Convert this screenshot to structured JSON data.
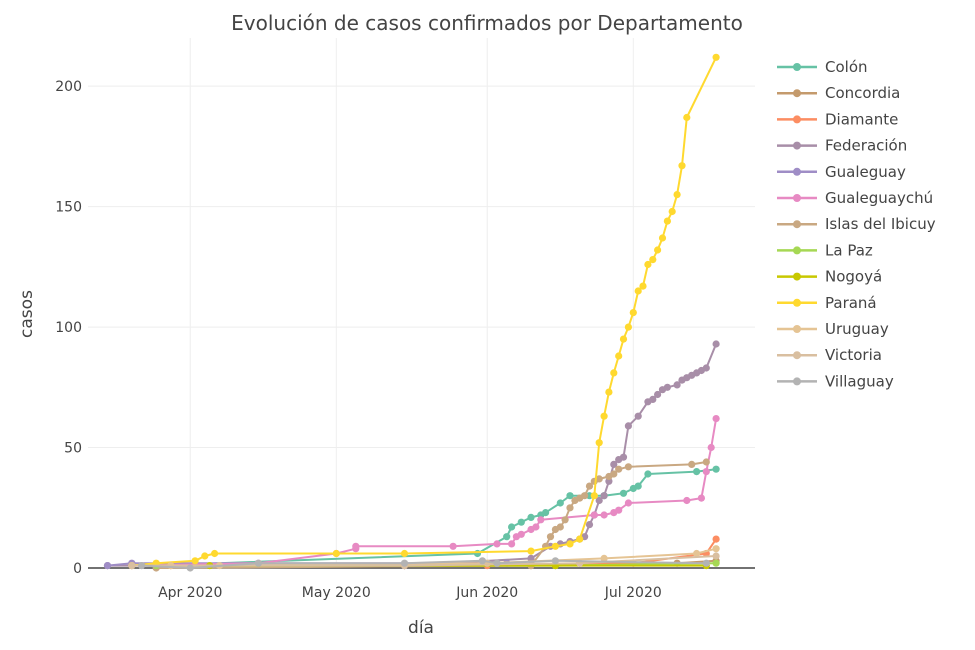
{
  "chart_data": {
    "type": "line",
    "title": "Evolución de casos confirmados por Departamento",
    "xlabel": "día",
    "ylabel": "casos",
    "xlim": [
      "2020-03-11",
      "2020-07-26"
    ],
    "ylim": [
      0,
      220
    ],
    "x_ticks": [
      {
        "date": "2020-04-01",
        "label": "Apr 2020"
      },
      {
        "date": "2020-05-01",
        "label": "May 2020"
      },
      {
        "date": "2020-06-01",
        "label": "Jun 2020"
      },
      {
        "date": "2020-07-01",
        "label": "Jul 2020"
      }
    ],
    "y_ticks": [
      0,
      50,
      100,
      150,
      200
    ],
    "grid": true,
    "legend_position": "right",
    "series": [
      {
        "name": "Colón",
        "color": "#66c2a5",
        "points": [
          [
            "2020-03-25",
            1
          ],
          [
            "2020-05-30",
            6
          ],
          [
            "2020-06-05",
            13
          ],
          [
            "2020-06-06",
            17
          ],
          [
            "2020-06-08",
            19
          ],
          [
            "2020-06-10",
            21
          ],
          [
            "2020-06-12",
            22
          ],
          [
            "2020-06-13",
            23
          ],
          [
            "2020-06-16",
            27
          ],
          [
            "2020-06-18",
            30
          ],
          [
            "2020-06-22",
            30
          ],
          [
            "2020-06-25",
            30
          ],
          [
            "2020-06-29",
            31
          ],
          [
            "2020-07-01",
            33
          ],
          [
            "2020-07-02",
            34
          ],
          [
            "2020-07-04",
            39
          ],
          [
            "2020-07-14",
            40
          ],
          [
            "2020-07-18",
            41
          ]
        ]
      },
      {
        "name": "Concordia",
        "color": "#c49a6c",
        "points": [
          [
            "2020-03-25",
            1
          ],
          [
            "2020-05-15",
            1
          ],
          [
            "2020-06-10",
            1
          ],
          [
            "2020-06-20",
            2
          ],
          [
            "2020-07-10",
            2
          ],
          [
            "2020-07-18",
            3
          ]
        ]
      },
      {
        "name": "Diamante",
        "color": "#fc8d62",
        "points": [
          [
            "2020-03-28",
            1
          ],
          [
            "2020-06-01",
            1
          ],
          [
            "2020-07-01",
            2
          ],
          [
            "2020-07-16",
            6
          ],
          [
            "2020-07-18",
            12
          ]
        ]
      },
      {
        "name": "Federación",
        "color": "#a88ea8",
        "points": [
          [
            "2020-03-15",
            1
          ],
          [
            "2020-05-15",
            1
          ],
          [
            "2020-06-10",
            4
          ],
          [
            "2020-06-14",
            9
          ],
          [
            "2020-06-16",
            10
          ],
          [
            "2020-06-18",
            11
          ],
          [
            "2020-06-20",
            12
          ],
          [
            "2020-06-21",
            13
          ],
          [
            "2020-06-22",
            18
          ],
          [
            "2020-06-23",
            22
          ],
          [
            "2020-06-24",
            28
          ],
          [
            "2020-06-25",
            30
          ],
          [
            "2020-06-26",
            36
          ],
          [
            "2020-06-27",
            43
          ],
          [
            "2020-06-28",
            45
          ],
          [
            "2020-06-29",
            46
          ],
          [
            "2020-06-30",
            59
          ],
          [
            "2020-07-02",
            63
          ],
          [
            "2020-07-04",
            69
          ],
          [
            "2020-07-05",
            70
          ],
          [
            "2020-07-06",
            72
          ],
          [
            "2020-07-07",
            74
          ],
          [
            "2020-07-08",
            75
          ],
          [
            "2020-07-10",
            76
          ],
          [
            "2020-07-11",
            78
          ],
          [
            "2020-07-12",
            79
          ],
          [
            "2020-07-13",
            80
          ],
          [
            "2020-07-14",
            81
          ],
          [
            "2020-07-15",
            82
          ],
          [
            "2020-07-16",
            83
          ],
          [
            "2020-07-18",
            93
          ]
        ]
      },
      {
        "name": "Gualeguay",
        "color": "#9f8dc6",
        "points": [
          [
            "2020-03-15",
            1
          ],
          [
            "2020-03-20",
            2
          ],
          [
            "2020-06-05",
            2
          ]
        ]
      },
      {
        "name": "Gualeguaychú",
        "color": "#e78ac3",
        "points": [
          [
            "2020-03-20",
            1
          ],
          [
            "2020-04-15",
            2
          ],
          [
            "2020-05-01",
            6
          ],
          [
            "2020-05-05",
            8
          ],
          [
            "2020-05-05",
            9
          ],
          [
            "2020-05-25",
            9
          ],
          [
            "2020-06-03",
            10
          ],
          [
            "2020-06-06",
            10
          ],
          [
            "2020-06-07",
            13
          ],
          [
            "2020-06-08",
            14
          ],
          [
            "2020-06-10",
            16
          ],
          [
            "2020-06-11",
            17
          ],
          [
            "2020-06-12",
            20
          ],
          [
            "2020-06-23",
            22
          ],
          [
            "2020-06-25",
            22
          ],
          [
            "2020-06-27",
            23
          ],
          [
            "2020-06-28",
            24
          ],
          [
            "2020-06-30",
            27
          ],
          [
            "2020-07-12",
            28
          ],
          [
            "2020-07-15",
            29
          ],
          [
            "2020-07-16",
            40
          ],
          [
            "2020-07-17",
            50
          ],
          [
            "2020-07-18",
            62
          ]
        ]
      },
      {
        "name": "Islas del Ibicuy",
        "color": "#c9a882",
        "points": [
          [
            "2020-03-25",
            0
          ],
          [
            "2020-06-10",
            1
          ],
          [
            "2020-06-13",
            9
          ],
          [
            "2020-06-14",
            13
          ],
          [
            "2020-06-15",
            16
          ],
          [
            "2020-06-16",
            17
          ],
          [
            "2020-06-17",
            20
          ],
          [
            "2020-06-18",
            25
          ],
          [
            "2020-06-19",
            28
          ],
          [
            "2020-06-20",
            29
          ],
          [
            "2020-06-21",
            30
          ],
          [
            "2020-06-22",
            34
          ],
          [
            "2020-06-23",
            36
          ],
          [
            "2020-06-24",
            37
          ],
          [
            "2020-06-26",
            38
          ],
          [
            "2020-06-27",
            39
          ],
          [
            "2020-06-28",
            41
          ],
          [
            "2020-06-30",
            42
          ],
          [
            "2020-07-13",
            43
          ],
          [
            "2020-07-16",
            44
          ]
        ]
      },
      {
        "name": "La Paz",
        "color": "#a6d854",
        "points": [
          [
            "2020-03-25",
            1
          ],
          [
            "2020-06-15",
            1
          ],
          [
            "2020-07-18",
            2
          ]
        ]
      },
      {
        "name": "Nogoyá",
        "color": "#c8c800",
        "points": [
          [
            "2020-04-05",
            1
          ],
          [
            "2020-06-15",
            1
          ],
          [
            "2020-07-16",
            1
          ]
        ]
      },
      {
        "name": "Paraná",
        "color": "#ffd92f",
        "points": [
          [
            "2020-03-20",
            1
          ],
          [
            "2020-03-25",
            2
          ],
          [
            "2020-04-02",
            3
          ],
          [
            "2020-04-04",
            5
          ],
          [
            "2020-04-06",
            6
          ],
          [
            "2020-05-01",
            6
          ],
          [
            "2020-05-15",
            6
          ],
          [
            "2020-06-10",
            7
          ],
          [
            "2020-06-15",
            9
          ],
          [
            "2020-06-18",
            10
          ],
          [
            "2020-06-20",
            12
          ],
          [
            "2020-06-23",
            30
          ],
          [
            "2020-06-24",
            52
          ],
          [
            "2020-06-25",
            63
          ],
          [
            "2020-06-26",
            73
          ],
          [
            "2020-06-27",
            81
          ],
          [
            "2020-06-28",
            88
          ],
          [
            "2020-06-29",
            95
          ],
          [
            "2020-06-30",
            100
          ],
          [
            "2020-07-01",
            106
          ],
          [
            "2020-07-02",
            115
          ],
          [
            "2020-07-03",
            117
          ],
          [
            "2020-07-04",
            126
          ],
          [
            "2020-07-05",
            128
          ],
          [
            "2020-07-06",
            132
          ],
          [
            "2020-07-07",
            137
          ],
          [
            "2020-07-08",
            144
          ],
          [
            "2020-07-09",
            148
          ],
          [
            "2020-07-10",
            155
          ],
          [
            "2020-07-11",
            167
          ],
          [
            "2020-07-12",
            187
          ],
          [
            "2020-07-18",
            212
          ]
        ]
      },
      {
        "name": "Uruguay",
        "color": "#e5c494",
        "points": [
          [
            "2020-03-28",
            1
          ],
          [
            "2020-04-07",
            1
          ],
          [
            "2020-06-01",
            2
          ],
          [
            "2020-06-25",
            4
          ],
          [
            "2020-07-14",
            6
          ],
          [
            "2020-07-18",
            8
          ]
        ]
      },
      {
        "name": "Victoria",
        "color": "#d9bfa0",
        "points": [
          [
            "2020-03-20",
            1
          ],
          [
            "2020-05-15",
            1
          ],
          [
            "2020-06-20",
            2
          ],
          [
            "2020-07-18",
            5
          ]
        ]
      },
      {
        "name": "Villaguay",
        "color": "#b3b3b3",
        "points": [
          [
            "2020-03-22",
            1
          ],
          [
            "2020-04-01",
            0
          ],
          [
            "2020-04-15",
            2
          ],
          [
            "2020-05-15",
            2
          ],
          [
            "2020-05-31",
            3
          ],
          [
            "2020-06-03",
            2
          ],
          [
            "2020-06-15",
            3
          ],
          [
            "2020-07-16",
            2
          ]
        ]
      }
    ]
  }
}
